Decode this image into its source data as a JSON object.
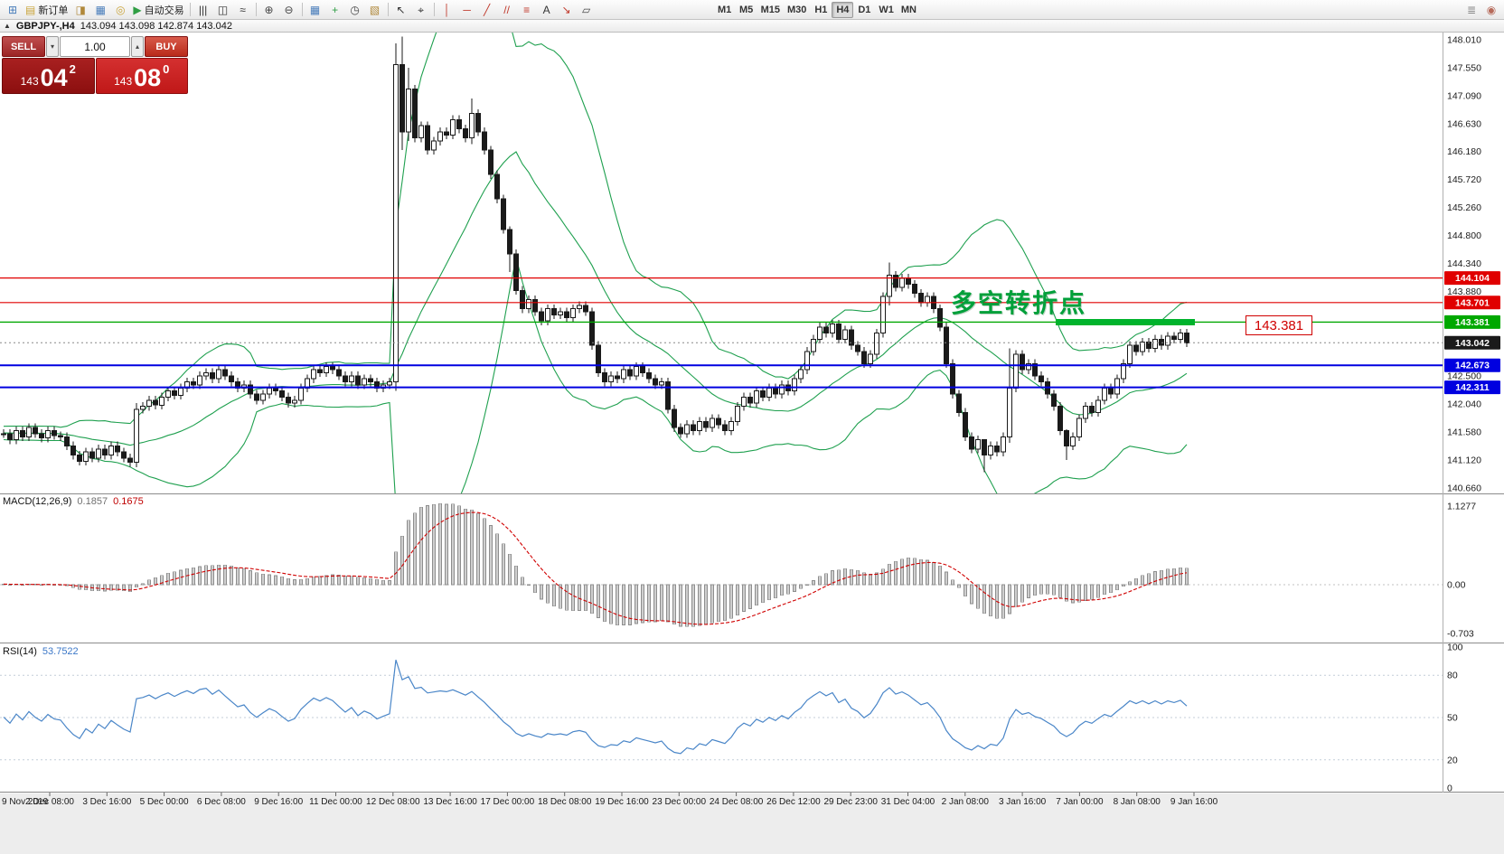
{
  "toolbar": {
    "items": [
      {
        "id": "new-chart",
        "glyph": "⊞",
        "color": "#4a7ebb"
      },
      {
        "id": "new-order",
        "glyph": "▤",
        "label": "新订单",
        "color": "#caa53c"
      },
      {
        "id": "chart-profile",
        "glyph": "◨",
        "color": "#b0883a"
      },
      {
        "id": "data-window",
        "glyph": "▦",
        "color": "#4a7ebb"
      },
      {
        "id": "navigator",
        "glyph": "◎",
        "color": "#caa53c"
      },
      {
        "id": "auto-trading",
        "glyph": "▶",
        "label": "自动交易",
        "color": "#2f9e44"
      },
      {
        "sep": true
      },
      {
        "id": "bar-chart",
        "glyph": "|||",
        "color": "#333333"
      },
      {
        "id": "candlestick-chart",
        "glyph": "◫",
        "color": "#333333"
      },
      {
        "id": "line-chart",
        "glyph": "≈",
        "color": "#333333"
      },
      {
        "sep": true
      },
      {
        "id": "zoom-in",
        "glyph": "⊕",
        "color": "#444444"
      },
      {
        "id": "zoom-out",
        "glyph": "⊖",
        "color": "#444444"
      },
      {
        "sep": true
      },
      {
        "id": "tile-windows",
        "glyph": "▦",
        "color": "#4a7ebb"
      },
      {
        "id": "indicators",
        "glyph": "+",
        "color": "#2f9e44"
      },
      {
        "id": "periods",
        "glyph": "◷",
        "color": "#444444"
      },
      {
        "id": "templates",
        "glyph": "▧",
        "color": "#b0883a"
      },
      {
        "sep": true
      },
      {
        "id": "cursor",
        "glyph": "↖",
        "color": "#333333"
      },
      {
        "id": "crosshair",
        "glyph": "⌖",
        "color": "#333333"
      },
      {
        "sep": true
      },
      {
        "id": "vertical-line",
        "glyph": "│",
        "color": "#c0392b"
      },
      {
        "id": "horizontal-line",
        "glyph": "─",
        "color": "#c0392b"
      },
      {
        "id": "trendline",
        "glyph": "╱",
        "color": "#c0392b"
      },
      {
        "id": "channel",
        "glyph": "//",
        "color": "#c0392b"
      },
      {
        "id": "fibonacci",
        "glyph": "≡",
        "color": "#c0392b"
      },
      {
        "id": "text-tool",
        "glyph": "A",
        "color": "#333333"
      },
      {
        "id": "arrows-tool",
        "glyph": "↘",
        "color": "#c0392b"
      },
      {
        "id": "shapes-tool",
        "glyph": "▱",
        "color": "#444444"
      }
    ],
    "timeframes": [
      "M1",
      "M5",
      "M15",
      "M30",
      "H1",
      "H4",
      "D1",
      "W1",
      "MN"
    ],
    "active_timeframe": "H4",
    "right_items": [
      {
        "id": "depth-of-market",
        "glyph": "≣",
        "color": "#888888"
      },
      {
        "id": "one-click-mode",
        "glyph": "◉",
        "color": "#b66a5a"
      }
    ]
  },
  "chart_header": {
    "icon": "▲",
    "symbol_period": "GBPJPY-,H4",
    "ohlc": "143.094 143.098 142.874 143.042"
  },
  "trade_panel": {
    "sell_label": "SELL",
    "buy_label": "BUY",
    "volume": "1.00",
    "volume_down_glyph": "▾",
    "volume_up_glyph": "▴",
    "sell_price_prefix": "143",
    "sell_price_big": "04",
    "sell_price_sup": "2",
    "buy_price_prefix": "143",
    "buy_price_big": "08",
    "buy_price_sup": "0"
  },
  "annotations": {
    "turning_point": "多空转折点",
    "price_label": "143.381",
    "highlight_bar_color": "#00b32c"
  },
  "indicators": {
    "macd": {
      "name": "MACD(12,26,9)",
      "value_main": "0.1857",
      "value_signal": "0.1675",
      "axis_labels": [
        "1.1277",
        "0.00",
        "-0.703"
      ],
      "derived_from": "closes"
    },
    "rsi": {
      "name": "RSI(14)",
      "value": "53.7522",
      "axis_labels": [
        "100",
        "80",
        "50",
        "20",
        "0"
      ],
      "levels": [
        80,
        50,
        20
      ],
      "derived_from": "closes"
    }
  },
  "chart_data": {
    "type": "candlestick",
    "symbol": "GBPJPY",
    "timeframe": "H4",
    "ylim": [
      140.57,
      148.13
    ],
    "visible_start_index": 30,
    "bollinger": {
      "period": 20,
      "deviation": 2,
      "derived": true
    },
    "closes": [
      141.5,
      141.42,
      141.55,
      141.48,
      141.6,
      141.52,
      141.45,
      141.58,
      141.5,
      141.62,
      141.55,
      141.47,
      141.6,
      141.53,
      141.65,
      141.57,
      141.5,
      141.62,
      141.54,
      141.66,
      141.58,
      141.5,
      141.61,
      141.53,
      141.64,
      141.56,
      141.48,
      141.59,
      141.51,
      141.55,
      141.55,
      141.45,
      141.6,
      141.5,
      141.65,
      141.55,
      141.48,
      141.6,
      141.52,
      141.5,
      141.35,
      141.2,
      141.1,
      141.25,
      141.15,
      141.3,
      141.2,
      141.35,
      141.25,
      141.15,
      141.08,
      141.95,
      142.0,
      142.1,
      142.02,
      142.15,
      142.25,
      142.18,
      142.3,
      142.4,
      142.35,
      142.5,
      142.55,
      142.45,
      142.6,
      142.5,
      142.4,
      142.3,
      142.35,
      142.2,
      142.1,
      142.2,
      142.3,
      142.25,
      142.15,
      142.05,
      142.1,
      142.3,
      142.45,
      142.6,
      142.55,
      142.65,
      142.6,
      142.5,
      142.4,
      142.5,
      142.35,
      142.45,
      142.4,
      142.3,
      142.35,
      142.4,
      147.6,
      146.5,
      147.2,
      146.4,
      146.6,
      146.2,
      146.35,
      146.5,
      146.45,
      146.7,
      146.55,
      146.4,
      146.8,
      146.5,
      146.2,
      145.8,
      145.4,
      144.9,
      144.5,
      143.9,
      143.6,
      143.75,
      143.55,
      143.4,
      143.6,
      143.5,
      143.55,
      143.45,
      143.6,
      143.65,
      143.55,
      143.0,
      142.55,
      142.4,
      142.5,
      142.45,
      142.6,
      142.5,
      142.65,
      142.55,
      142.45,
      142.35,
      142.4,
      141.95,
      141.65,
      141.55,
      141.7,
      141.6,
      141.75,
      141.65,
      141.8,
      141.7,
      141.6,
      141.75,
      142.0,
      142.15,
      142.05,
      142.25,
      142.15,
      142.3,
      142.2,
      142.35,
      142.25,
      142.45,
      142.6,
      142.9,
      143.1,
      143.3,
      143.2,
      143.35,
      143.1,
      143.25,
      143.0,
      142.9,
      142.7,
      142.85,
      143.2,
      143.8,
      144.15,
      143.95,
      144.1,
      144.0,
      143.85,
      143.7,
      143.8,
      143.6,
      143.3,
      142.7,
      142.2,
      141.9,
      141.5,
      141.3,
      141.45,
      141.2,
      141.35,
      141.25,
      141.5,
      142.3,
      142.85,
      142.6,
      142.7,
      142.5,
      142.4,
      142.2,
      142.0,
      141.6,
      141.35,
      141.5,
      141.8,
      142.0,
      141.9,
      142.1,
      142.3,
      142.2,
      142.45,
      142.7,
      143.0,
      142.9,
      143.05,
      142.95,
      143.1,
      143.0,
      143.15,
      143.1,
      143.2,
      143.04
    ],
    "wick_overrides": {
      "51": [
        142.05,
        141.0
      ],
      "92": [
        147.95,
        142.25
      ],
      "93": [
        148.06,
        146.2
      ],
      "94": [
        147.55,
        146.35
      ],
      "104": [
        147.05,
        146.3
      ],
      "110": [
        144.95,
        144.2
      ],
      "170": [
        144.36,
        143.65
      ],
      "185": [
        141.42,
        140.92
      ],
      "189": [
        142.95,
        141.4
      ],
      "198": [
        141.62,
        141.12
      ]
    },
    "levels": [
      {
        "value": 144.104,
        "label": "144.104",
        "color": "#e00000",
        "width": 1.2,
        "name": "resistance-line-144104"
      },
      {
        "value": 143.701,
        "label": "143.701",
        "color": "#e00000",
        "width": 1.2,
        "name": "resistance-line-143701"
      },
      {
        "value": 143.381,
        "label": "143.381",
        "color": "#00a800",
        "width": 1.4,
        "name": "pivot-line-143381"
      },
      {
        "value": 142.673,
        "label": "142.673",
        "color": "#0000e0",
        "width": 2,
        "name": "support-line-142673"
      },
      {
        "value": 142.311,
        "label": "142.311",
        "color": "#0000e0",
        "width": 2,
        "name": "support-line-142311"
      }
    ],
    "current_price": {
      "value": 143.042,
      "label": "143.042",
      "color": "#1a1a1a"
    },
    "y_axis_labels": [
      "148.010",
      "147.550",
      "147.090",
      "146.630",
      "146.180",
      "145.720",
      "145.260",
      "144.800",
      "144.340",
      "143.880",
      "142.500",
      "142.040",
      "141.580",
      "141.120",
      "140.660"
    ],
    "x_axis_labels": [
      "9 Nov 2019",
      "2 Dec 08:00",
      "3 Dec 16:00",
      "5 Dec 00:00",
      "6 Dec 08:00",
      "9 Dec 16:00",
      "11 Dec 00:00",
      "12 Dec 08:00",
      "13 Dec 16:00",
      "17 Dec 00:00",
      "18 Dec 08:00",
      "19 Dec 16:00",
      "23 Dec 00:00",
      "24 Dec 08:00",
      "26 Dec 12:00",
      "29 Dec 23:00",
      "31 Dec 04:00",
      "2 Jan 08:00",
      "3 Jan 16:00",
      "7 Jan 00:00",
      "8 Jan 08:00",
      "9 Jan 16:00"
    ],
    "colors": {
      "bull": "#ffffff",
      "bear": "#1a1a1a",
      "candle_stroke": "#1a1a1a",
      "bollinger": "#1fa04f",
      "macd_histogram": "#cfcfcf",
      "macd_signal": "#d00000",
      "rsi_line": "#4a86c8"
    }
  }
}
